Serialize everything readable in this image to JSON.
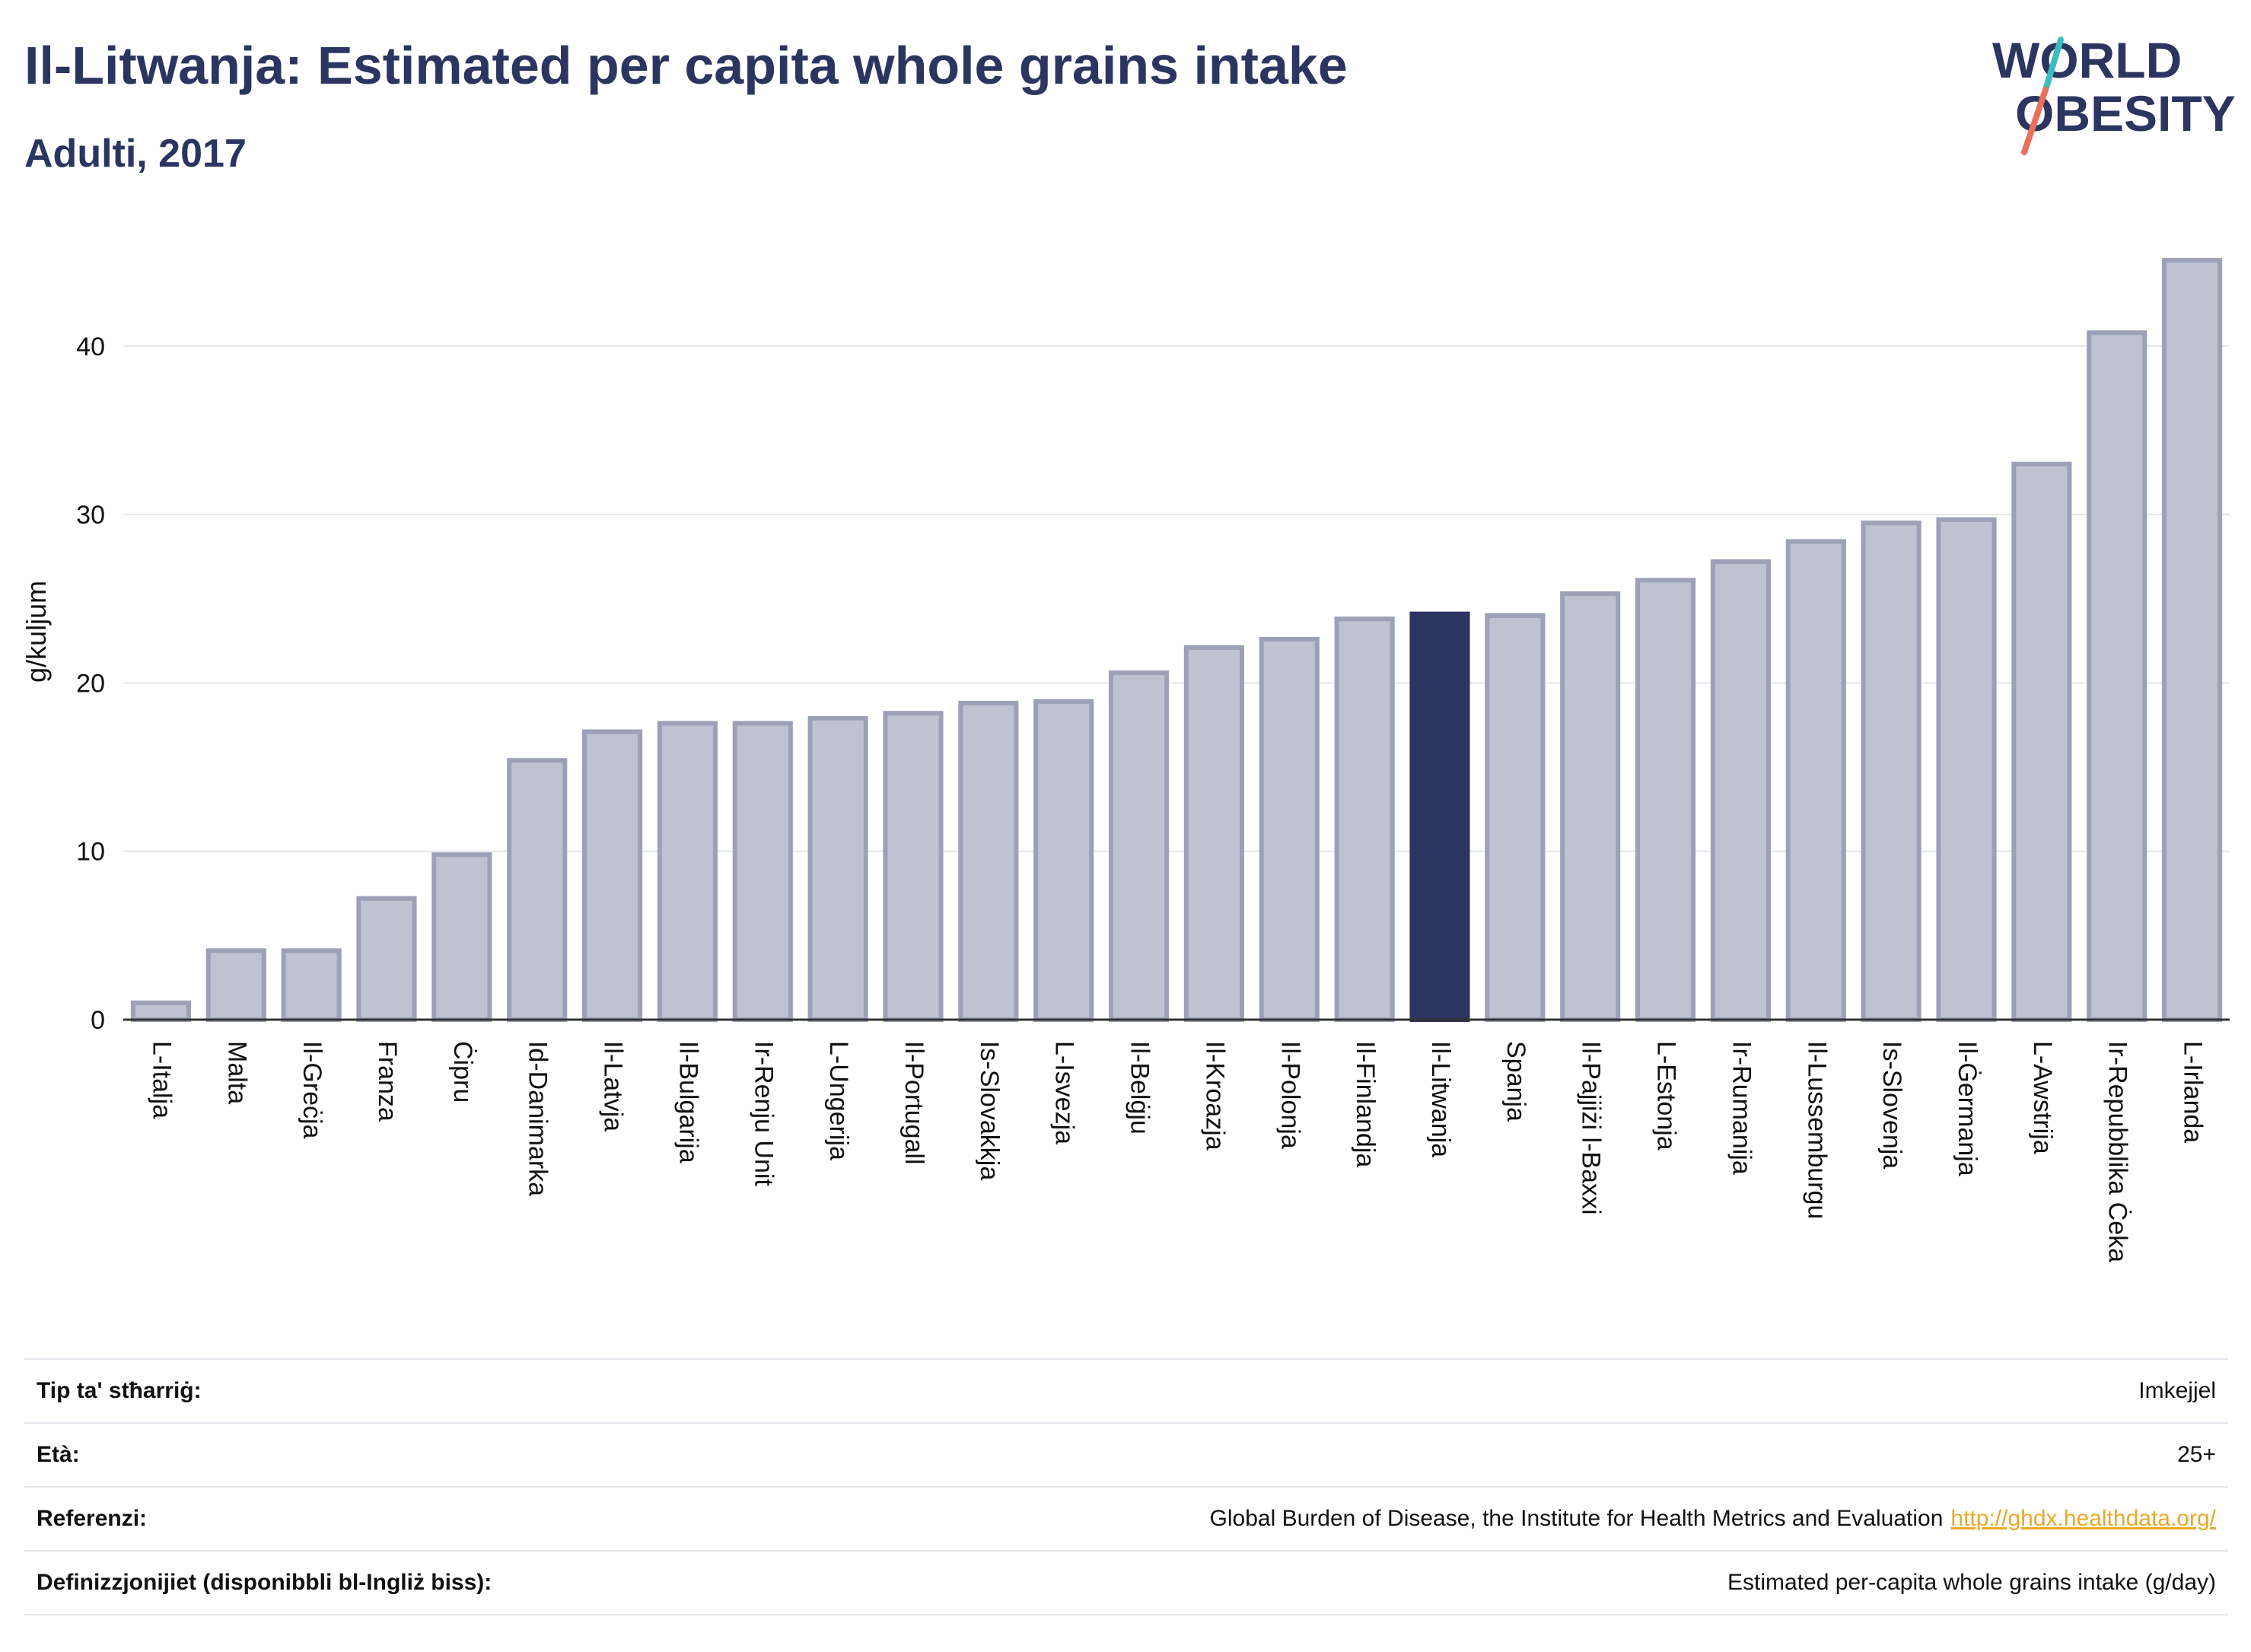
{
  "header": {
    "title": "Il-Litwanja: Estimated per capita whole grains intake",
    "subtitle": "Adulti, 2017",
    "logo_line1": "WORLD",
    "logo_line2": "OBESITY"
  },
  "colors": {
    "title": "#2b3560",
    "bar_default": "#bfc2d1",
    "bar_default_stroke": "#9ca1b8",
    "bar_highlight": "#2b3560",
    "grid": "#e4e6ec",
    "logo_teal": "#3cbdc0",
    "logo_coral": "#e9705e",
    "link": "#e9a92a"
  },
  "chart_data": {
    "type": "bar",
    "title": "Il-Litwanja: Estimated per capita whole grains intake",
    "subtitle": "Adulti, 2017",
    "ylabel": "g/kuljum",
    "xlabel": "",
    "ylim": [
      0,
      47
    ],
    "yticks": [
      0,
      10,
      20,
      30,
      40
    ],
    "grid": true,
    "highlight": "Il-Litwanja",
    "categories": [
      "L-Italja",
      "Malta",
      "Il-Greċja",
      "Franza",
      "Ċipru",
      "Id-Danimarka",
      "Il-Latvja",
      "Il-Bulgarija",
      "Ir-Renju Unit",
      "L-Ungerija",
      "Il-Portugall",
      "Is-Slovakkja",
      "L-Isvezja",
      "Il-Belġju",
      "Il-Kroazja",
      "Il-Polonja",
      "Il-Finlandja",
      "Il-Litwanja",
      "Spanja",
      "Il-Pajjiżi l-Baxxi",
      "L-Estonja",
      "Ir-Rumanija",
      "Il-Lussemburgu",
      "Is-Slovenja",
      "Il-Ġermanja",
      "L-Awstrija",
      "Ir-Repubblika Ċeka",
      "L-Irlanda"
    ],
    "values": [
      1.0,
      4.1,
      4.1,
      7.2,
      9.8,
      15.4,
      17.1,
      17.6,
      17.6,
      17.9,
      18.2,
      18.8,
      18.9,
      20.6,
      22.1,
      22.6,
      23.8,
      24.1,
      24.0,
      25.3,
      26.1,
      27.2,
      28.4,
      29.5,
      29.7,
      33.0,
      40.8,
      45.1
    ]
  },
  "info": {
    "rows": [
      {
        "label": "Tip ta' stħarriġ:",
        "value": "Imkejjel",
        "link": ""
      },
      {
        "label": "Età:",
        "value": "25+",
        "link": ""
      },
      {
        "label": "Referenzi:",
        "value": "Global Burden of Disease, the Institute for Health Metrics and Evaluation",
        "link": "http://ghdx.healthdata.org/"
      },
      {
        "label": "Definizzjonijiet (disponibbli bl-Ingliż biss):",
        "value": "Estimated per-capita whole grains intake (g/day)",
        "link": ""
      }
    ]
  }
}
